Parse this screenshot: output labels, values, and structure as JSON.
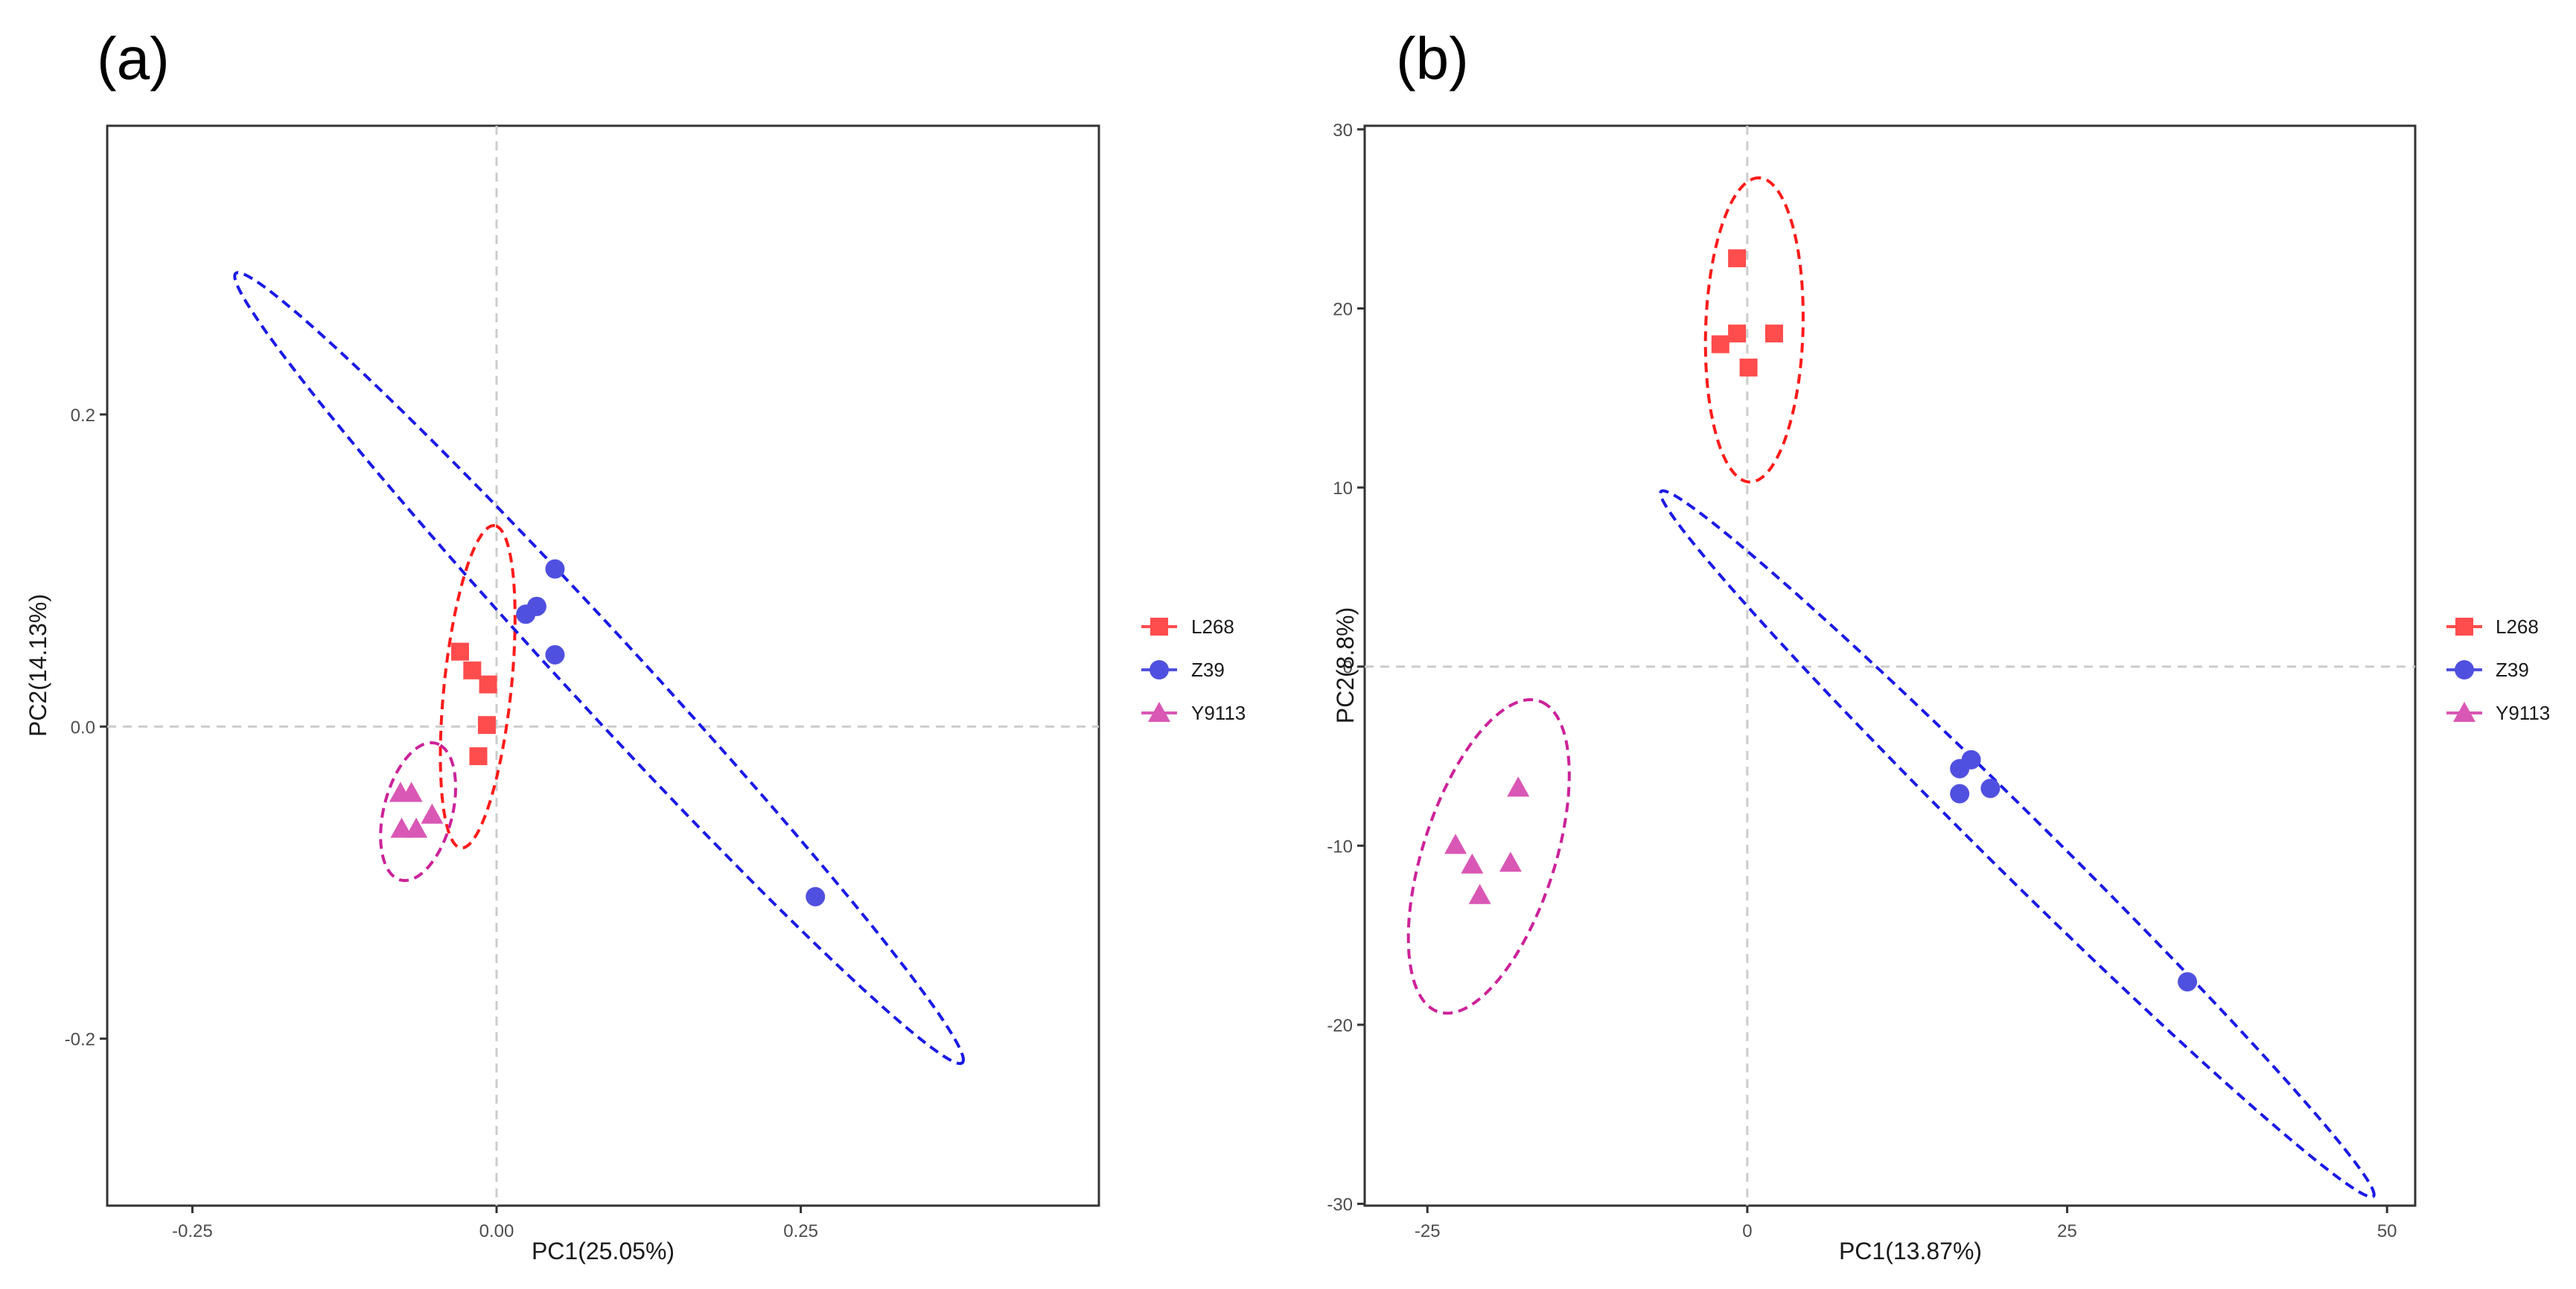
{
  "figure": {
    "colors": {
      "L268": "#ff4c4c",
      "Z39": "#5050e0",
      "Y9113": "#d957b5",
      "ellipse_L268": "#ff1a1a",
      "ellipse_Z39": "#1a1ae6",
      "ellipse_Y9113": "#cc2299",
      "refline": "#cccccc",
      "frame": "#333333"
    }
  },
  "chart_data": [
    {
      "type": "scatter",
      "panel_label": "(a)",
      "xlabel": "PC1(25.05%)",
      "ylabel": "PC2(14.13%)",
      "xlim": [
        -0.32,
        0.495
      ],
      "ylim": [
        -0.307,
        0.385
      ],
      "xticks": [
        -0.25,
        0.0,
        0.25
      ],
      "xtick_labels": [
        "-0.25",
        "0.00",
        "0.25"
      ],
      "yticks": [
        -0.2,
        0.0,
        0.2
      ],
      "ytick_labels": [
        "-0.2",
        "0.0",
        "0.2"
      ],
      "grid": false,
      "reference_lines": {
        "x": 0,
        "y": 0
      },
      "legend": [
        "L268",
        "Z39",
        "Y9113"
      ],
      "legend_position": "right",
      "series": [
        {
          "name": "L268",
          "marker": "square",
          "x": [
            -0.03,
            -0.02,
            -0.007,
            -0.008,
            -0.015
          ],
          "y": [
            0.048,
            0.036,
            0.027,
            0.001,
            -0.019
          ]
        },
        {
          "name": "Z39",
          "marker": "circle",
          "x": [
            0.048,
            0.033,
            0.024,
            0.048,
            0.262
          ],
          "y": [
            0.101,
            0.077,
            0.072,
            0.046,
            -0.109
          ]
        },
        {
          "name": "Y9113",
          "marker": "triangle",
          "x": [
            -0.079,
            -0.07,
            -0.053,
            -0.078,
            -0.066
          ],
          "y": [
            -0.043,
            -0.043,
            -0.057,
            -0.066,
            -0.066
          ]
        }
      ],
      "ellipses": [
        {
          "group": "L268",
          "cx": -0.0155,
          "cy": 0.0255,
          "a": 0.1042,
          "b": 0.0275,
          "angle_deg": 82.2
        },
        {
          "group": "Z39",
          "cx": 0.0842,
          "cy": 0.0375,
          "a": 0.3914,
          "b": 0.0264,
          "angle_deg": -40.2
        },
        {
          "group": "Y9113",
          "cx": -0.0645,
          "cy": -0.0545,
          "a": 0.0463,
          "b": 0.0275,
          "angle_deg": 68.0
        }
      ]
    },
    {
      "type": "scatter",
      "panel_label": "(b)",
      "xlabel": "PC1(13.87%)",
      "ylabel": "PC2(8.8%)",
      "xlim": [
        -29.9,
        52.2
      ],
      "ylim": [
        -30.1,
        30.2
      ],
      "xticks": [
        -25,
        0,
        25,
        50
      ],
      "xtick_labels": [
        "-25",
        "0",
        "25",
        "50"
      ],
      "yticks": [
        -30,
        -20,
        -10,
        0,
        10,
        20,
        30
      ],
      "ytick_labels": [
        "-30",
        "-20",
        "-10",
        "0",
        "10",
        "20",
        "30"
      ],
      "grid": false,
      "reference_lines": {
        "x": 0,
        "y": 0
      },
      "legend": [
        "L268",
        "Z39",
        "Y9113"
      ],
      "legend_position": "right",
      "series": [
        {
          "name": "L268",
          "marker": "square",
          "x": [
            -0.8,
            -2.1,
            -0.8,
            2.1,
            0.1
          ],
          "y": [
            22.8,
            18.0,
            18.6,
            18.6,
            16.7
          ]
        },
        {
          "name": "Z39",
          "marker": "circle",
          "x": [
            16.6,
            17.5,
            16.6,
            19.0,
            34.4
          ],
          "y": [
            -5.7,
            -5.2,
            -7.1,
            -6.8,
            -17.6
          ]
        },
        {
          "name": "Y9113",
          "marker": "triangle",
          "x": [
            -17.9,
            -22.8,
            -21.5,
            -18.5,
            -20.9
          ],
          "y": [
            -6.8,
            -10.0,
            -11.1,
            -11.0,
            -12.8
          ]
        }
      ],
      "ellipses": [
        {
          "group": "L268",
          "cx": 0.55,
          "cy": 18.8,
          "a": 8.5,
          "b": 3.8,
          "angle_deg": 87.2
        },
        {
          "group": "Z39",
          "cx": 21.1,
          "cy": -9.9,
          "a": 34.1,
          "b": 1.92,
          "angle_deg": -35.2
        },
        {
          "group": "Y9113",
          "cx": -20.2,
          "cy": -10.6,
          "a": 9.6,
          "b": 4.9,
          "angle_deg": 61.5
        }
      ]
    }
  ]
}
